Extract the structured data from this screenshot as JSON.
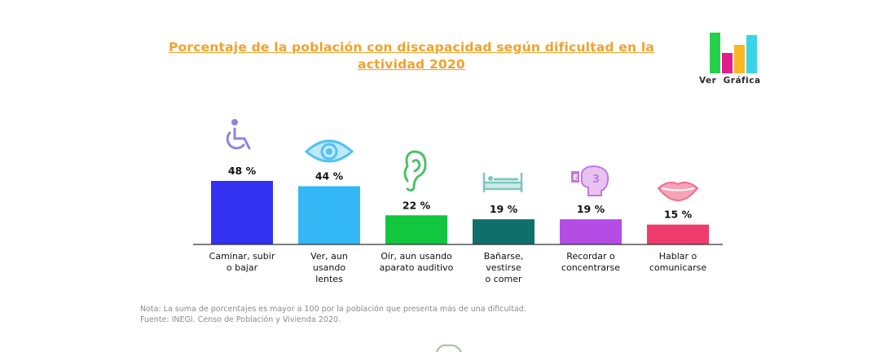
{
  "title": "Porcentaje de la población con discapacidad según dificultad en la actividad 2020",
  "logo": {
    "label_1": "Ver",
    "label_2": "Gráfica",
    "bar_colors": [
      "#25d14b",
      "#e21d8d",
      "#f7b825",
      "#3bd3e8"
    ]
  },
  "note": {
    "line_1": "Nota: La suma de porcentajes es mayor a 100 por la población que presenta más de una dificultad.",
    "line_2": "Fuente: INEGI. Censo de Población y Vivienda 2020."
  },
  "chart_data": {
    "type": "bar",
    "title": "Porcentaje de la población con discapacidad según dificultad en la actividad 2020",
    "categories": [
      [
        "Caminar, subir",
        "o bajar"
      ],
      [
        "Ver, aun",
        "usando",
        "lentes"
      ],
      [
        "Oír, aun usando",
        "aparato auditivo"
      ],
      [
        "Bañarse,",
        "vestirse",
        "o comer"
      ],
      [
        "Recordar o",
        "concentrarse"
      ],
      [
        "Hablar o",
        "comunicarse"
      ]
    ],
    "values": [
      48,
      44,
      22,
      19,
      19,
      15
    ],
    "data_labels": [
      "48 %",
      "44 %",
      "22 %",
      "19 %",
      "19 %",
      "15 %"
    ],
    "colors": [
      "#3232f0",
      "#33b8f5",
      "#12c640",
      "#0f6f6b",
      "#b44ce6",
      "#ee3b6e"
    ],
    "icons": [
      "wheelchair-icon",
      "eye-icon",
      "ear-icon",
      "bed-icon",
      "head-memory-icon",
      "lips-icon"
    ],
    "ylim": [
      0,
      50
    ],
    "grid": false,
    "legend": "none"
  }
}
